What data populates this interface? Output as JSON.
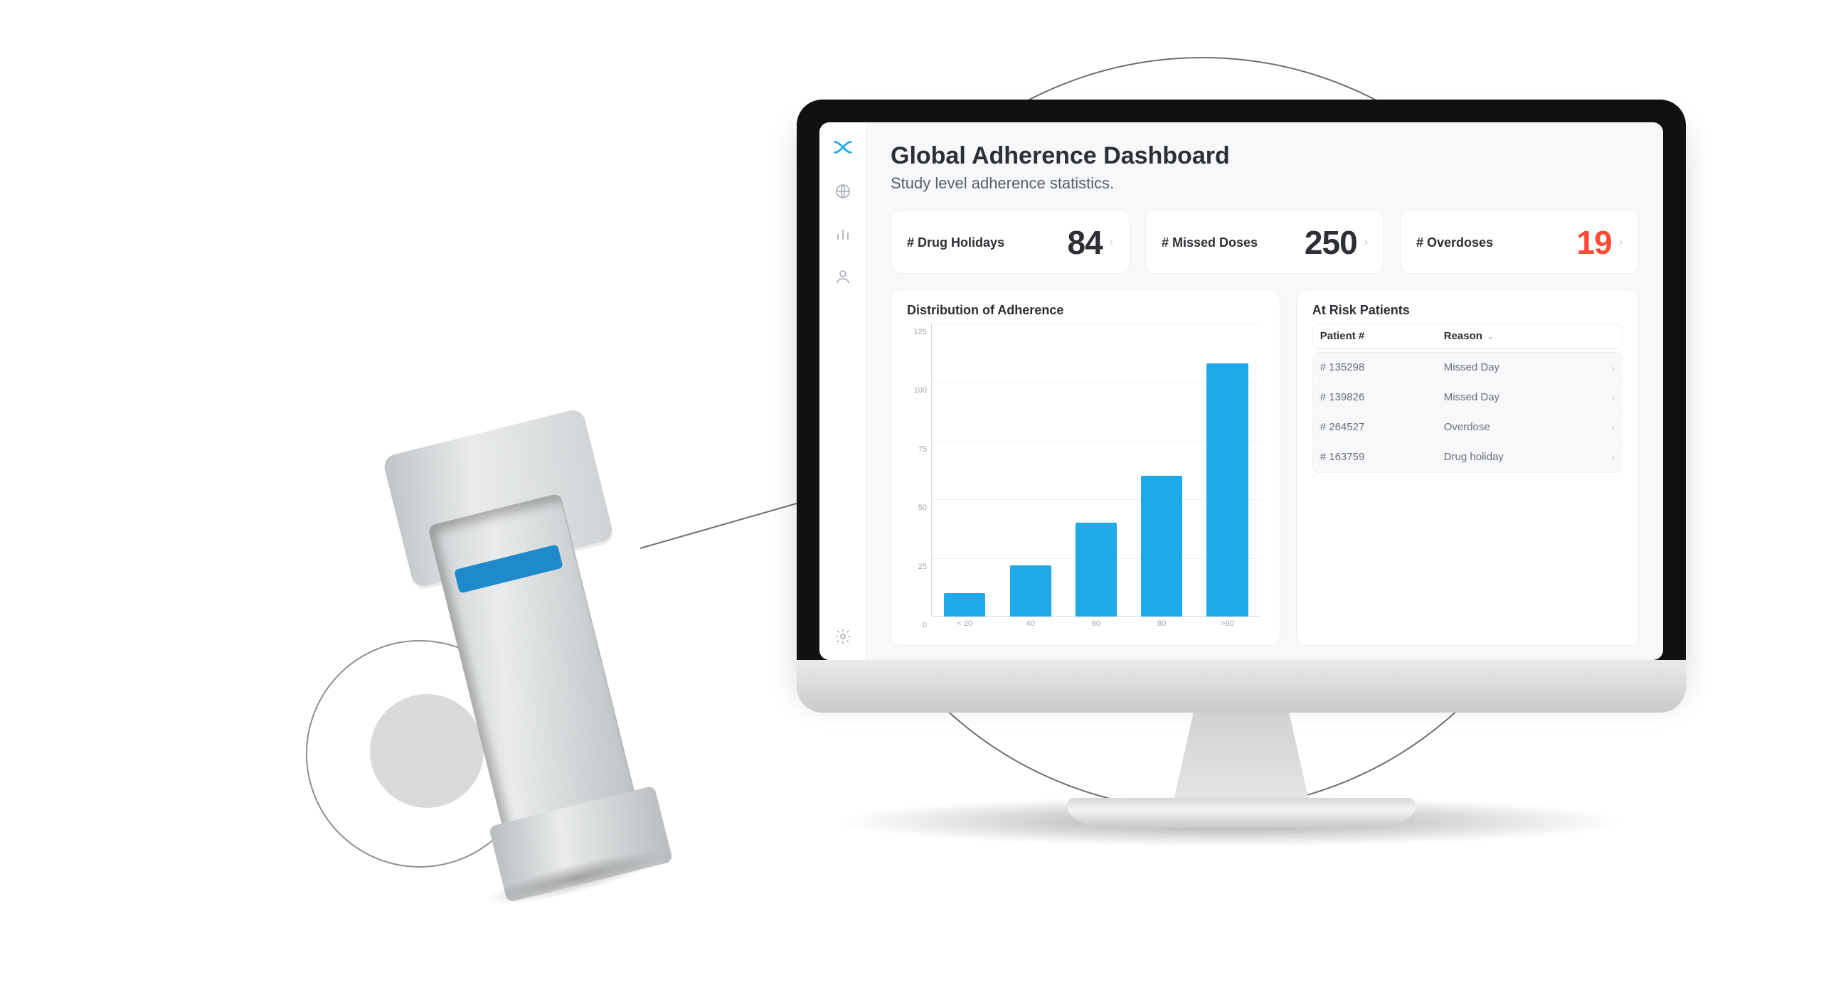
{
  "header": {
    "title": "Global Adherence Dashboard",
    "subtitle": "Study level adherence statistics."
  },
  "sidebar": {
    "icons": [
      "globe",
      "bar-chart",
      "user",
      "settings"
    ]
  },
  "stats": [
    {
      "label": "# Drug Holidays",
      "value": "84",
      "alert": false
    },
    {
      "label": "# Missed Doses",
      "value": "250",
      "alert": false
    },
    {
      "label": "# Overdoses",
      "value": "19",
      "alert": true
    }
  ],
  "chart": {
    "title": "Distribution of Adherence",
    "type": "bar",
    "categories": [
      "< 20",
      "40",
      "60",
      "80",
      ">90"
    ],
    "values": [
      10,
      22,
      40,
      60,
      108
    ],
    "bar_color": "#1fa9e8",
    "ylim": [
      0,
      125
    ],
    "yticks": [
      0,
      25,
      50,
      75,
      100,
      125
    ],
    "background_color": "#ffffff",
    "grid_color": "#f0f1f3",
    "axis_color": "#d7dadd",
    "label_fontsize": 11,
    "bar_width": 0.78
  },
  "table": {
    "title": "At Risk Patients",
    "columns": {
      "patient": "Patient #",
      "reason": "Reason"
    },
    "rows": [
      {
        "patient": "# 135298",
        "reason": "Missed Day"
      },
      {
        "patient": "# 139826",
        "reason": "Missed Day"
      },
      {
        "patient": "# 264527",
        "reason": "Overdose"
      },
      {
        "patient": "# 163759",
        "reason": "Drug holiday"
      }
    ]
  },
  "colors": {
    "text": "#2c2f33",
    "muted": "#5a5f66",
    "border": "#eceef0",
    "alert": "#ff4b33",
    "screen_bg": "#f7f8f9"
  }
}
